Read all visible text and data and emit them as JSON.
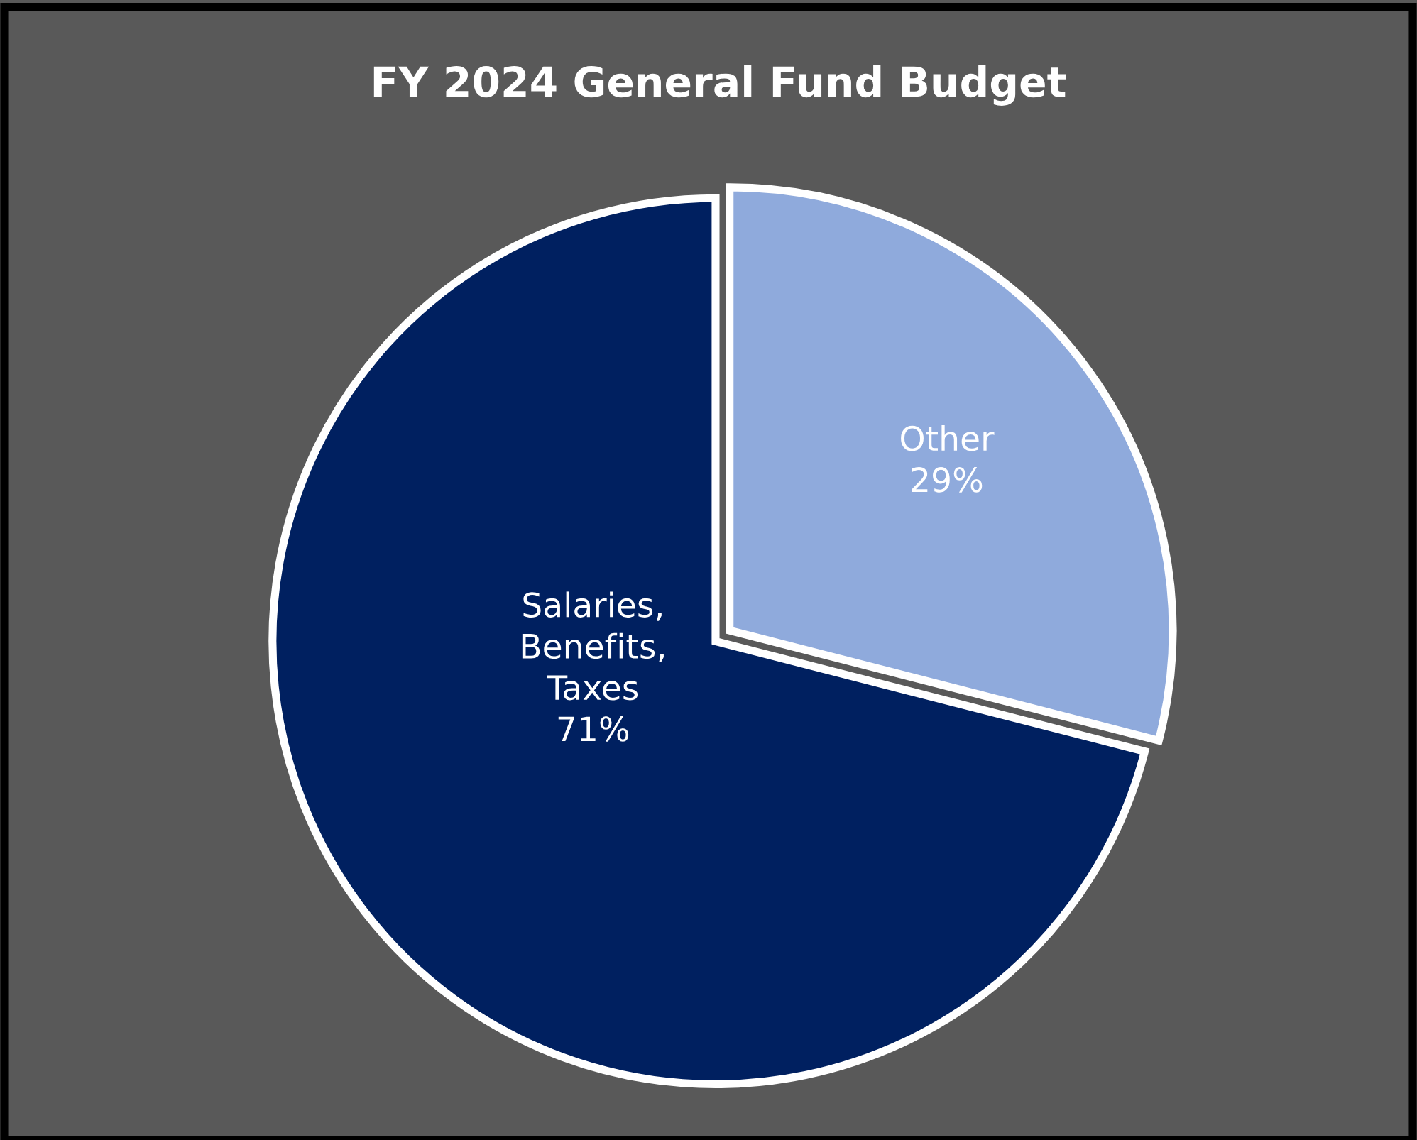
{
  "chart_data": {
    "type": "pie",
    "title": "FY 2024 General Fund Budget",
    "categories": [
      "Other",
      "Salaries,\nBenefits,\nTaxes"
    ],
    "values": [
      29,
      71
    ],
    "colors": [
      "#8faadc",
      "#002060"
    ],
    "value_labels": [
      "29%",
      "71%"
    ]
  }
}
